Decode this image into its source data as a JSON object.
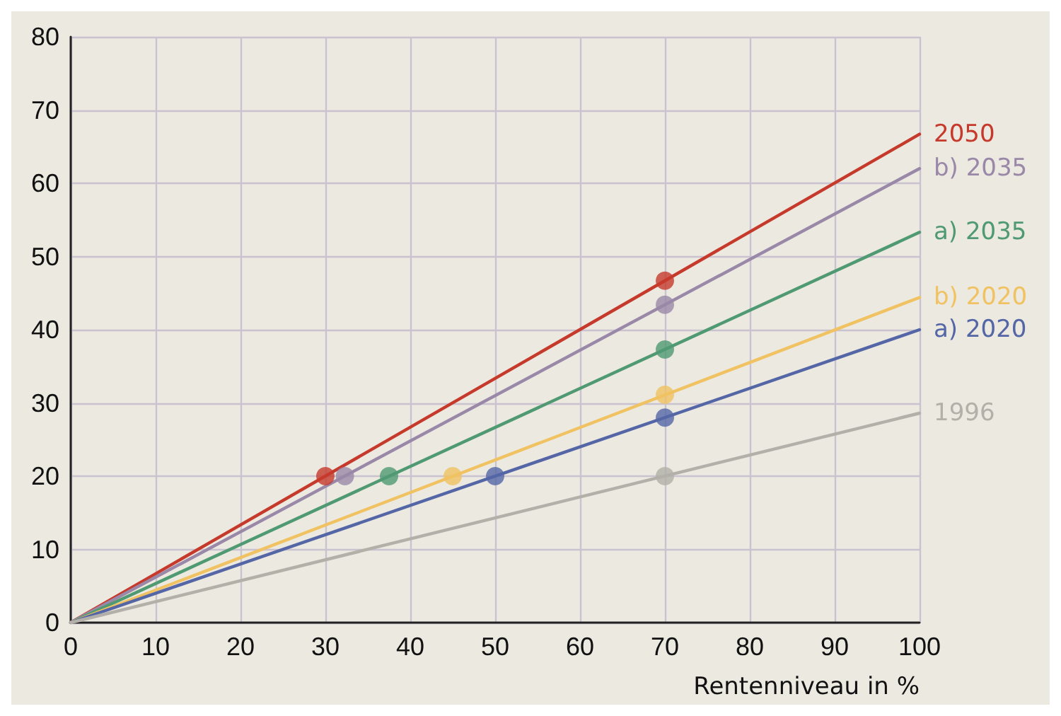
{
  "chart_data": {
    "type": "line",
    "xlabel": "Rentenniveau in %",
    "xlim": [
      0,
      100
    ],
    "xticks": [
      0,
      10,
      20,
      30,
      40,
      50,
      60,
      70,
      80,
      90,
      100
    ],
    "ylim": [
      0,
      80
    ],
    "yticks": [
      0,
      10,
      20,
      30,
      40,
      50,
      60,
      70,
      80
    ],
    "grid": true,
    "legend": false,
    "marker": "none",
    "line_style": "solid",
    "series": [
      {
        "name": "2050",
        "color": "#c63a2c",
        "x": [
          0,
          100
        ],
        "values": [
          0,
          66.7
        ]
      },
      {
        "name": "b) 2035",
        "color": "#9a88a8",
        "x": [
          0,
          100
        ],
        "values": [
          0,
          62
        ]
      },
      {
        "name": "a) 2035",
        "color": "#4f9a72",
        "x": [
          0,
          100
        ],
        "values": [
          0,
          53.3
        ]
      },
      {
        "name": "b) 2020",
        "color": "#f0c262",
        "x": [
          0,
          100
        ],
        "values": [
          0,
          44.4
        ]
      },
      {
        "name": "a) 2020",
        "color": "#5466a6",
        "x": [
          0,
          100
        ],
        "values": [
          0,
          40
        ]
      },
      {
        "name": "1996",
        "color": "#b2b0a8",
        "x": [
          0,
          100
        ],
        "values": [
          0,
          28.6
        ]
      },
      {
        "type": "scatter",
        "marker": "circle",
        "color": "#c63a2c",
        "x": [
          30,
          70
        ],
        "values": [
          20,
          46.7
        ]
      },
      {
        "type": "scatter",
        "marker": "circle",
        "color": "#9a88a8",
        "x": [
          32.3,
          70
        ],
        "values": [
          20,
          43.4
        ]
      },
      {
        "type": "scatter",
        "marker": "circle",
        "color": "#4f9a72",
        "x": [
          37.5,
          70
        ],
        "values": [
          20,
          37.3
        ]
      },
      {
        "type": "scatter",
        "marker": "circle",
        "color": "#f0c262",
        "x": [
          45,
          70
        ],
        "values": [
          20,
          31.1
        ]
      },
      {
        "type": "scatter",
        "marker": "circle",
        "color": "#5466a6",
        "x": [
          50,
          70
        ],
        "values": [
          20,
          28
        ]
      },
      {
        "type": "scatter",
        "marker": "circle",
        "color": "#b2b0a8",
        "x": [
          70
        ],
        "values": [
          20
        ]
      }
    ]
  }
}
